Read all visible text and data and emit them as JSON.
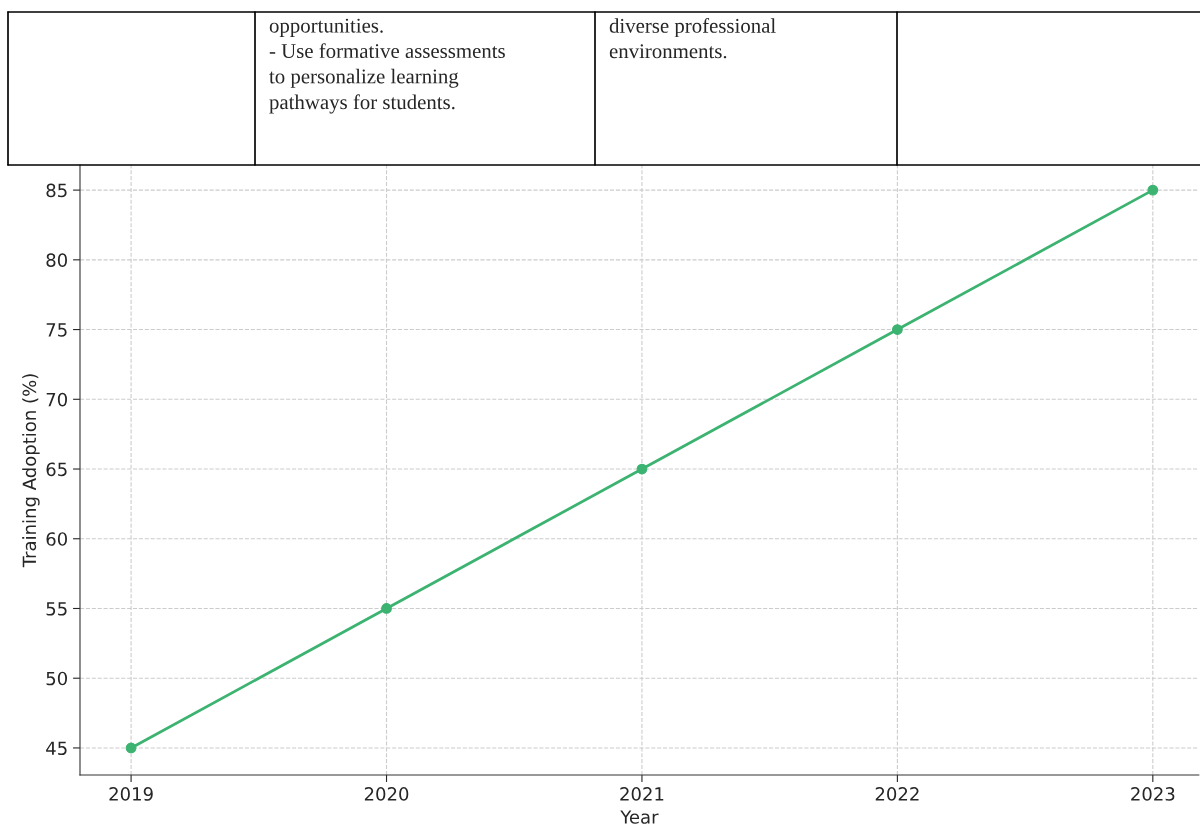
{
  "chart_data": {
    "type": "line",
    "xlabel": "Year",
    "ylabel": "Training Adoption (%)",
    "x": [
      2019,
      2020,
      2021,
      2022,
      2023
    ],
    "series": [
      {
        "color": "#3cb371",
        "values": [
          45,
          55,
          65,
          75,
          85
        ]
      }
    ],
    "xlim": [
      2018.8,
      2023.18
    ],
    "xticks": [
      2019,
      2020,
      2021,
      2022,
      2023
    ],
    "ylim": [
      43.06,
      86.8
    ],
    "yticks": [
      45,
      50,
      55,
      60,
      65,
      70,
      75,
      80,
      85
    ],
    "grid": true,
    "marker": "circle",
    "line_style": "solid",
    "legend": false,
    "annotations": [
      "opportunities.\n- Use formative assessments\nto personalize learning\npathways for students.",
      "diverse professional\nenvironments."
    ]
  }
}
